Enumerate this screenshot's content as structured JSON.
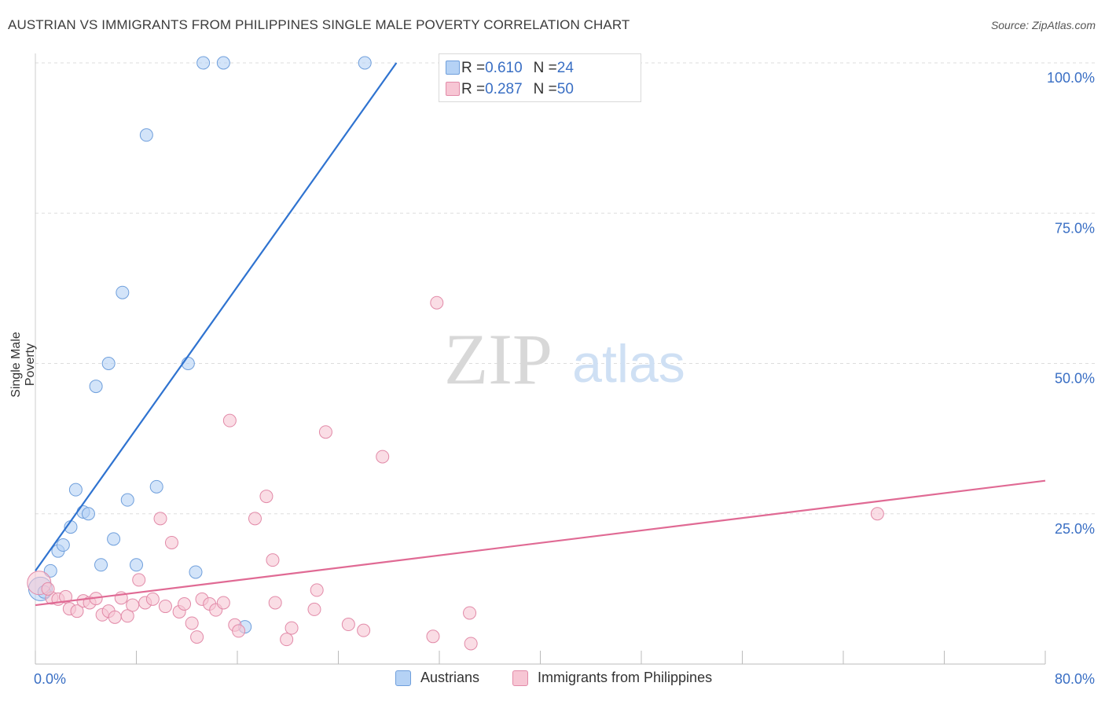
{
  "title": "AUSTRIAN VS IMMIGRANTS FROM PHILIPPINES SINGLE MALE POVERTY CORRELATION CHART",
  "source": "Source: ZipAtlas.com",
  "watermark": {
    "zip": "ZIP",
    "atlas": "atlas"
  },
  "legend_top": [
    {
      "r_label": "R = ",
      "r_value": "0.610",
      "n_label": "N = ",
      "n_value": "24"
    },
    {
      "r_label": "R = ",
      "r_value": "0.287",
      "n_label": "N = ",
      "n_value": "50"
    }
  ],
  "legend_bottom": [
    "Austrians",
    "Immigrants from Philippines"
  ],
  "colors": {
    "blue_fill": "#b5d2f5",
    "blue_stroke": "#6f9fdc",
    "blue_line": "#2f73d0",
    "pink_fill": "#f7c6d4",
    "pink_stroke": "#e28aa8",
    "pink_line": "#e06a94",
    "axis_text": "#3a6fc4",
    "grid": "#dddddd"
  },
  "chart_data": {
    "type": "scatter",
    "xlabel": "",
    "ylabel": "Single Male Poverty",
    "xlim": [
      0,
      80
    ],
    "ylim": [
      0,
      100
    ],
    "x_tick_labels": [
      "0.0%",
      "80.0%"
    ],
    "y_tick_labels": [
      "25.0%",
      "50.0%",
      "75.0%",
      "100.0%"
    ],
    "y_ticks": [
      25,
      50,
      75,
      100
    ],
    "grid": true,
    "series": [
      {
        "name": "Austrians",
        "r": 0.61,
        "n": 24,
        "trend": {
          "x": [
            0,
            28.6
          ],
          "y": [
            15.5,
            100
          ]
        },
        "points": [
          {
            "x": 0.4,
            "y": 12.5,
            "big": true
          },
          {
            "x": 1.2,
            "y": 15.5
          },
          {
            "x": 1.8,
            "y": 18.8
          },
          {
            "x": 2.2,
            "y": 19.8
          },
          {
            "x": 2.8,
            "y": 22.8
          },
          {
            "x": 3.2,
            "y": 29.0
          },
          {
            "x": 3.8,
            "y": 25.3
          },
          {
            "x": 4.2,
            "y": 25.0
          },
          {
            "x": 4.8,
            "y": 46.2
          },
          {
            "x": 5.2,
            "y": 16.5
          },
          {
            "x": 5.8,
            "y": 50.0
          },
          {
            "x": 6.2,
            "y": 20.8
          },
          {
            "x": 6.9,
            "y": 61.8
          },
          {
            "x": 7.3,
            "y": 27.3
          },
          {
            "x": 8.0,
            "y": 16.5
          },
          {
            "x": 8.8,
            "y": 88.0
          },
          {
            "x": 9.6,
            "y": 29.5
          },
          {
            "x": 12.1,
            "y": 50.0
          },
          {
            "x": 12.7,
            "y": 15.3
          },
          {
            "x": 13.3,
            "y": 100.0
          },
          {
            "x": 14.9,
            "y": 100.0
          },
          {
            "x": 16.6,
            "y": 6.2
          },
          {
            "x": 26.1,
            "y": 100.0
          },
          {
            "x": 0.7,
            "y": 12.0
          }
        ]
      },
      {
        "name": "Immigrants from Philippines",
        "r": 0.287,
        "n": 50,
        "trend": {
          "x": [
            0,
            80
          ],
          "y": [
            9.8,
            30.5
          ]
        },
        "points": [
          {
            "x": 0.3,
            "y": 13.5,
            "big": true
          },
          {
            "x": 1.3,
            "y": 11.0
          },
          {
            "x": 1.8,
            "y": 10.8
          },
          {
            "x": 2.4,
            "y": 11.2
          },
          {
            "x": 2.7,
            "y": 9.2
          },
          {
            "x": 3.3,
            "y": 8.8
          },
          {
            "x": 3.8,
            "y": 10.5
          },
          {
            "x": 4.3,
            "y": 10.2
          },
          {
            "x": 4.8,
            "y": 10.9
          },
          {
            "x": 5.3,
            "y": 8.2
          },
          {
            "x": 5.8,
            "y": 8.8
          },
          {
            "x": 6.3,
            "y": 7.8
          },
          {
            "x": 6.8,
            "y": 11.0
          },
          {
            "x": 7.3,
            "y": 8.0
          },
          {
            "x": 7.7,
            "y": 9.8
          },
          {
            "x": 8.2,
            "y": 14.0
          },
          {
            "x": 8.7,
            "y": 10.2
          },
          {
            "x": 9.3,
            "y": 10.8
          },
          {
            "x": 9.9,
            "y": 24.2
          },
          {
            "x": 10.3,
            "y": 9.6
          },
          {
            "x": 10.8,
            "y": 20.2
          },
          {
            "x": 11.4,
            "y": 8.7
          },
          {
            "x": 11.8,
            "y": 10.0
          },
          {
            "x": 12.4,
            "y": 6.8
          },
          {
            "x": 12.8,
            "y": 4.5
          },
          {
            "x": 13.2,
            "y": 10.8
          },
          {
            "x": 13.8,
            "y": 10.0
          },
          {
            "x": 14.3,
            "y": 9.0
          },
          {
            "x": 14.9,
            "y": 10.2
          },
          {
            "x": 15.4,
            "y": 40.5
          },
          {
            "x": 15.8,
            "y": 6.5
          },
          {
            "x": 16.1,
            "y": 5.5
          },
          {
            "x": 17.4,
            "y": 24.2
          },
          {
            "x": 18.3,
            "y": 27.9
          },
          {
            "x": 18.8,
            "y": 17.3
          },
          {
            "x": 19.0,
            "y": 10.2
          },
          {
            "x": 19.9,
            "y": 4.1
          },
          {
            "x": 20.3,
            "y": 6.0
          },
          {
            "x": 22.1,
            "y": 9.1
          },
          {
            "x": 22.3,
            "y": 12.3
          },
          {
            "x": 23.0,
            "y": 38.6
          },
          {
            "x": 24.8,
            "y": 6.6
          },
          {
            "x": 26.0,
            "y": 5.6
          },
          {
            "x": 27.5,
            "y": 34.5
          },
          {
            "x": 31.5,
            "y": 4.6
          },
          {
            "x": 31.8,
            "y": 60.1
          },
          {
            "x": 34.5,
            "y": 3.4
          },
          {
            "x": 34.4,
            "y": 8.5
          },
          {
            "x": 66.7,
            "y": 25.0
          },
          {
            "x": 1.0,
            "y": 12.5
          }
        ]
      }
    ]
  }
}
